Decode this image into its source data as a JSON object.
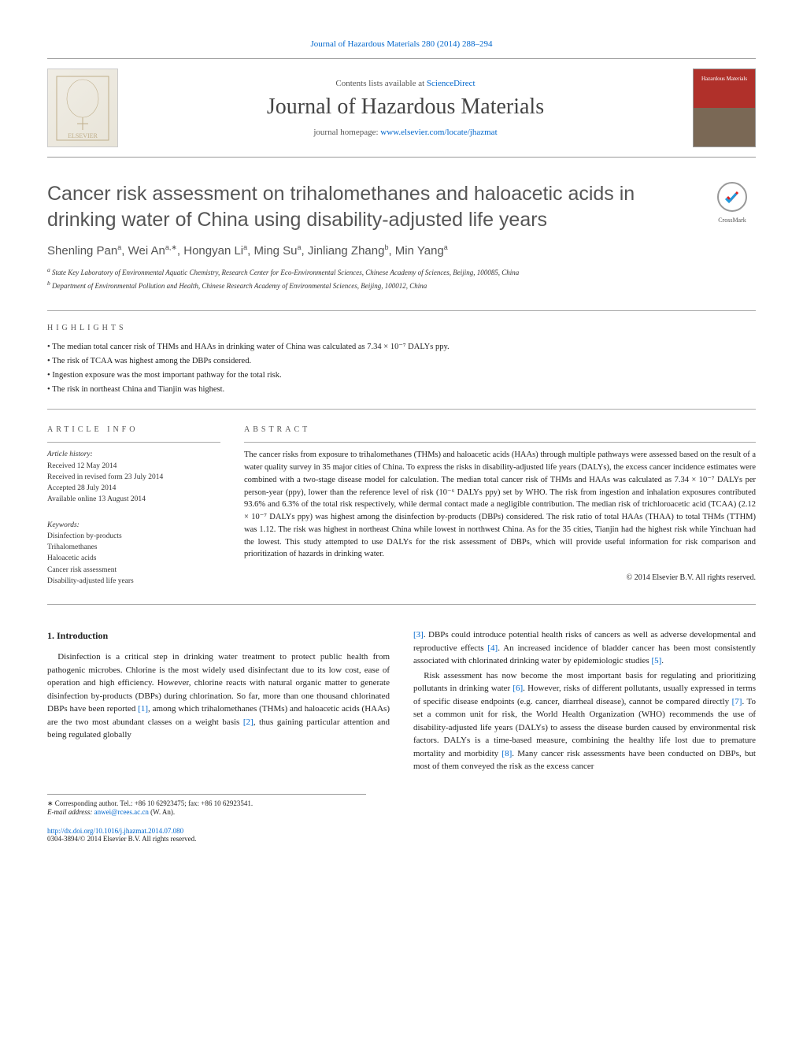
{
  "header": {
    "citation": "Journal of Hazardous Materials 280 (2014) 288–294",
    "contents_prefix": "Contents lists available at ",
    "contents_link": "ScienceDirect",
    "journal_name": "Journal of Hazardous Materials",
    "homepage_prefix": "journal homepage: ",
    "homepage_link": "www.elsevier.com/locate/jhazmat",
    "cover_label": "Hazardous Materials"
  },
  "title": "Cancer risk assessment on trihalomethanes and haloacetic acids in drinking water of China using disability-adjusted life years",
  "crossmark_label": "CrossMark",
  "authors_html": "Shenling Pan",
  "authors": [
    {
      "name": "Shenling Pan",
      "aff": "a"
    },
    {
      "name": "Wei An",
      "aff": "a,∗"
    },
    {
      "name": "Hongyan Li",
      "aff": "a"
    },
    {
      "name": "Ming Su",
      "aff": "a"
    },
    {
      "name": "Jinliang Zhang",
      "aff": "b"
    },
    {
      "name": "Min Yang",
      "aff": "a"
    }
  ],
  "affiliations": [
    {
      "sup": "a",
      "text": "State Key Laboratory of Environmental Aquatic Chemistry, Research Center for Eco-Environmental Sciences, Chinese Academy of Sciences, Beijing, 100085, China"
    },
    {
      "sup": "b",
      "text": "Department of Environmental Pollution and Health, Chinese Research Academy of Environmental Sciences, Beijing, 100012, China"
    }
  ],
  "highlights_label": "HIGHLIGHTS",
  "highlights": [
    "The median total cancer risk of THMs and HAAs in drinking water of China was calculated as 7.34 × 10⁻⁷ DALYs ppy.",
    "The risk of TCAA was highest among the DBPs considered.",
    "Ingestion exposure was the most important pathway for the total risk.",
    "The risk in northeast China and Tianjin was highest."
  ],
  "article_info_label": "ARTICLE INFO",
  "article_history_label": "Article history:",
  "article_history": [
    "Received 12 May 2014",
    "Received in revised form 23 July 2014",
    "Accepted 28 July 2014",
    "Available online 13 August 2014"
  ],
  "keywords_label": "Keywords:",
  "keywords": [
    "Disinfection by-products",
    "Trihalomethanes",
    "Haloacetic acids",
    "Cancer risk assessment",
    "Disability-adjusted life years"
  ],
  "abstract_label": "ABSTRACT",
  "abstract_text": "The cancer risks from exposure to trihalomethanes (THMs) and haloacetic acids (HAAs) through multiple pathways were assessed based on the result of a water quality survey in 35 major cities of China. To express the risks in disability-adjusted life years (DALYs), the excess cancer incidence estimates were combined with a two-stage disease model for calculation. The median total cancer risk of THMs and HAAs was calculated as 7.34 × 10⁻⁷ DALYs per person-year (ppy), lower than the reference level of risk (10⁻⁶ DALYs ppy) set by WHO. The risk from ingestion and inhalation exposures contributed 93.6% and 6.3% of the total risk respectively, while dermal contact made a negligible contribution. The median risk of trichloroacetic acid (TCAA) (2.12 × 10⁻⁷ DALYs ppy) was highest among the disinfection by-products (DBPs) considered. The risk ratio of total HAAs (THAA) to total THMs (TTHM) was 1.12. The risk was highest in northeast China while lowest in northwest China. As for the 35 cities, Tianjin had the highest risk while Yinchuan had the lowest. This study attempted to use DALYs for the risk assessment of DBPs, which will provide useful information for risk comparison and prioritization of hazards in drinking water.",
  "copyright": "© 2014 Elsevier B.V. All rights reserved.",
  "intro_heading": "1. Introduction",
  "intro_col1": "Disinfection is a critical step in drinking water treatment to protect public health from pathogenic microbes. Chlorine is the most widely used disinfectant due to its low cost, ease of operation and high efficiency. However, chlorine reacts with natural organic matter to generate disinfection by-products (DBPs) during chlorination. So far, more than one thousand chlorinated DBPs have been reported [1], among which trihalomethanes (THMs) and haloacetic acids (HAAs) are the two most abundant classes on a weight basis [2], thus gaining particular attention and being regulated globally",
  "intro_col2_p1": "[3]. DBPs could introduce potential health risks of cancers as well as adverse developmental and reproductive effects [4]. An increased incidence of bladder cancer has been most consistently associated with chlorinated drinking water by epidemiologic studies [5].",
  "intro_col2_p2": "Risk assessment has now become the most important basis for regulating and prioritizing pollutants in drinking water [6]. However, risks of different pollutants, usually expressed in terms of specific disease endpoints (e.g. cancer, diarrheal disease), cannot be compared directly [7]. To set a common unit for risk, the World Health Organization (WHO) recommends the use of disability-adjusted life years (DALYs) to assess the disease burden caused by environmental risk factors. DALYs is a time-based measure, combining the healthy life lost due to premature mortality and morbidity [8]. Many cancer risk assessments have been conducted on DBPs, but most of them conveyed the risk as the excess cancer",
  "footnote": {
    "corr": "∗ Corresponding author. Tel.: +86 10 62923475; fax: +86 10 62923541.",
    "email_label": "E-mail address: ",
    "email": "anwei@rcees.ac.cn",
    "email_suffix": " (W. An)."
  },
  "footer": {
    "doi": "http://dx.doi.org/10.1016/j.jhazmat.2014.07.080",
    "issn_line": "0304-3894/© 2014 Elsevier B.V. All rights reserved."
  },
  "colors": {
    "link": "#0066cc",
    "text": "#222222",
    "heading_gray": "#555555",
    "rule": "#aaaaaa",
    "cover_red": "#b0302a",
    "elsevier_orange": "#ff6a00"
  }
}
